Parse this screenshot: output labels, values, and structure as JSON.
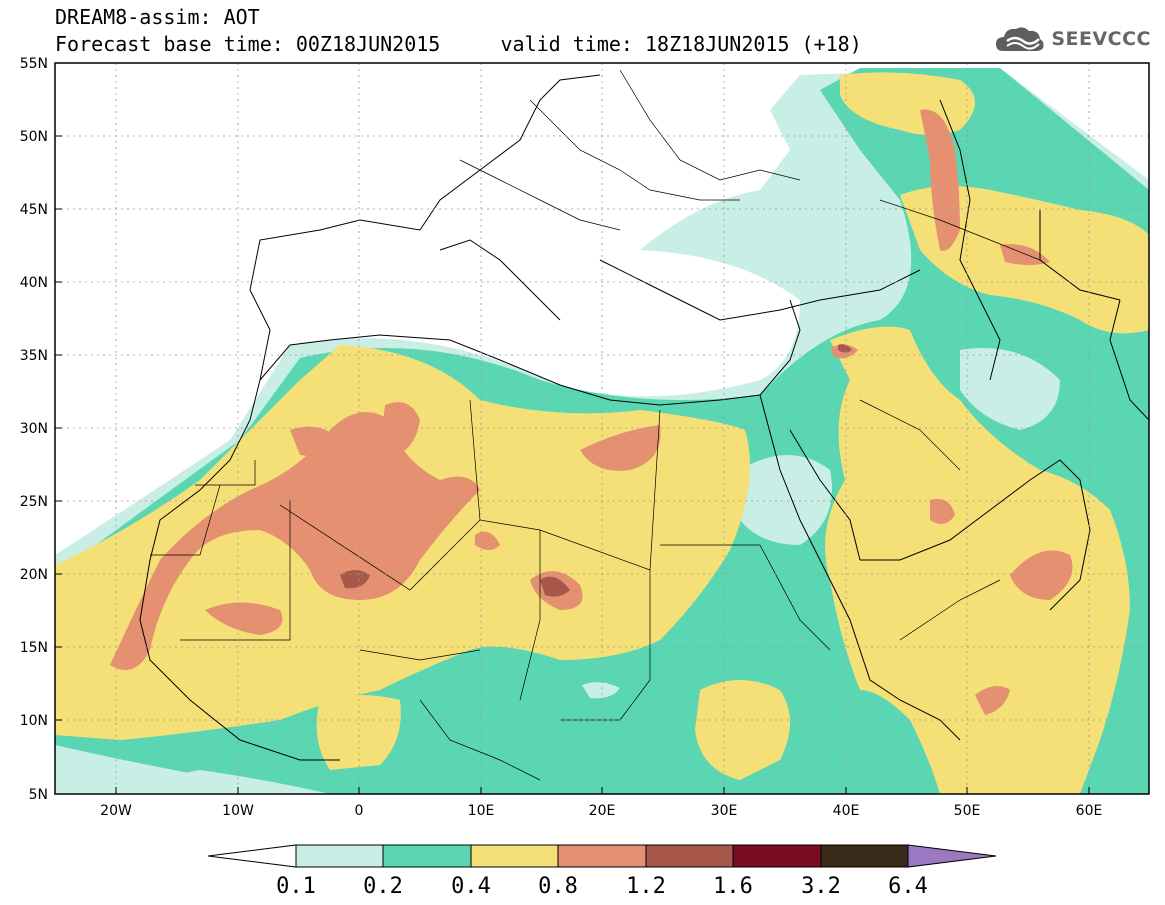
{
  "title_line1": "DREAM8-assim: AOT",
  "title_line2": "Forecast base time: 00Z18JUN2015     valid time: 18Z18JUN2015 (+18)",
  "logo_text": "SEEVCCC",
  "y_ticks": [
    "55N",
    "50N",
    "45N",
    "40N",
    "35N",
    "30N",
    "25N",
    "20N",
    "15N",
    "10N",
    "5N"
  ],
  "x_ticks": [
    "20W",
    "10W",
    "0",
    "10E",
    "20E",
    "30E",
    "40E",
    "50E",
    "60E"
  ],
  "colorbar": {
    "labels": [
      "0.1",
      "0.2",
      "0.4",
      "0.8",
      "1.2",
      "1.6",
      "3.2",
      "6.4"
    ],
    "colors": [
      "#ffffff",
      "#c8eee6",
      "#5ad6b2",
      "#f5e078",
      "#e59070",
      "#a8584a",
      "#780c22",
      "#3a2a1a",
      "#9a78c2"
    ]
  },
  "levels": {
    "lt_0_1": "#ffffff",
    "0_1_to_0_2": "#c8eee6",
    "0_2_to_0_4": "#5ad6b2",
    "0_4_to_0_8": "#f5e078",
    "0_8_to_1_2": "#e59070",
    "1_2_to_1_6": "#a8584a",
    "1_6_to_3_2": "#780c22",
    "3_2_to_6_4": "#3a2a1a",
    "gt_6_4": "#9a78c2"
  }
}
